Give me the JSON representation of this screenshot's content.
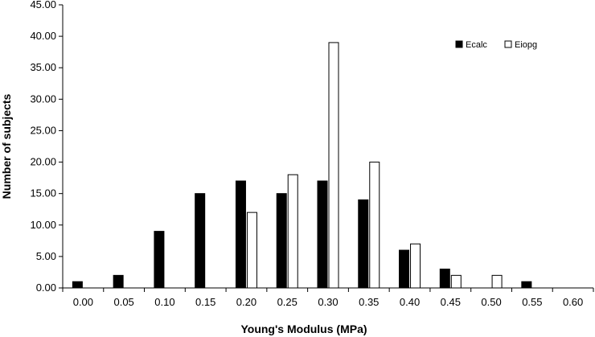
{
  "chart_data": {
    "type": "bar",
    "categories": [
      "0.00",
      "0.05",
      "0.10",
      "0.15",
      "0.20",
      "0.25",
      "0.30",
      "0.35",
      "0.40",
      "0.45",
      "0.50",
      "0.55",
      "0.60"
    ],
    "series": [
      {
        "name": "Ecalc",
        "values": [
          1,
          2,
          9,
          15,
          17,
          15,
          17,
          14,
          6,
          3,
          0,
          1,
          0
        ],
        "color": "#000000",
        "fill": "solid"
      },
      {
        "name": "Eiopg",
        "values": [
          0,
          0,
          0,
          0,
          12,
          18,
          39,
          20,
          7,
          2,
          2,
          0,
          0
        ],
        "color": "#000000",
        "fill": "none"
      }
    ],
    "title": "",
    "xlabel": "Young's Modulus (MPa)",
    "ylabel": "Number of subjects",
    "ylim": [
      0,
      45
    ],
    "yticks": [
      "0.00",
      "5.00",
      "10.00",
      "15.00",
      "20.00",
      "25.00",
      "30.00",
      "35.00",
      "40.00",
      "45.00"
    ],
    "grid": false,
    "legend_position": "top-right"
  }
}
